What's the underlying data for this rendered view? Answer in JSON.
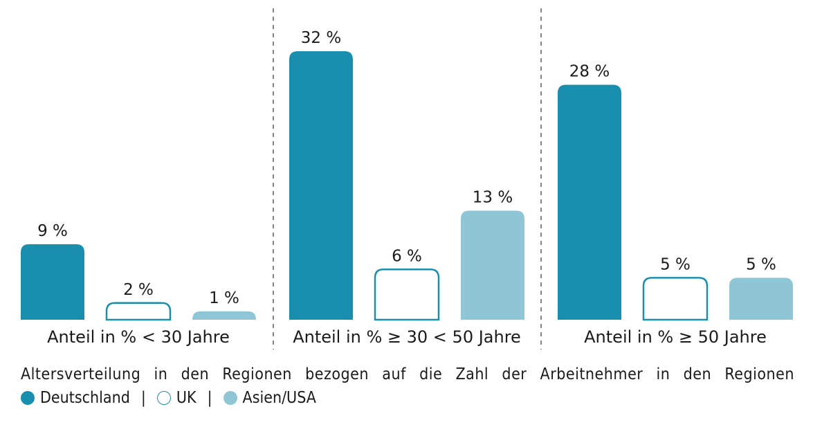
{
  "chart_data": {
    "type": "bar",
    "title": "",
    "groups": [
      "Anteil in % < 30 Jahre",
      "Anteil in % ≥ 30 < 50 Jahre",
      "Anteil in % ≥ 50 Jahre"
    ],
    "series": [
      {
        "name": "Deutschland",
        "values": [
          9,
          32,
          28
        ],
        "style": "filled",
        "color": "#1a8fad"
      },
      {
        "name": "UK",
        "values": [
          2,
          6,
          5
        ],
        "style": "outline",
        "color": "#1a8fad"
      },
      {
        "name": "Asien/USA",
        "values": [
          1,
          13,
          5
        ],
        "style": "filled",
        "color": "#8fc6d6"
      }
    ],
    "value_suffix": " %",
    "ylim": [
      0,
      32
    ],
    "grid": false,
    "legend_position": "bottom-left",
    "caption": "Altersverteilung in den Regionen bezogen auf die Zahl der Arbeitnehmer in den Regionen"
  },
  "legend": {
    "items": [
      "Deutschland",
      "UK",
      "Asien/USA"
    ],
    "separator": "|"
  }
}
